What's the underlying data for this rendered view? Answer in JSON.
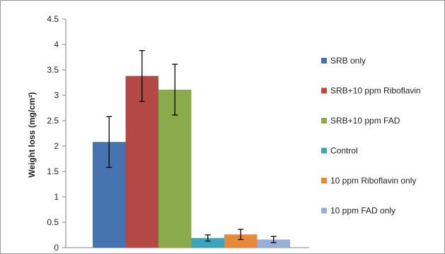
{
  "chart_data": {
    "type": "bar",
    "title": "",
    "xlabel": "",
    "ylabel": "Weight loss (mg/cm²)",
    "ylim": [
      0,
      4.5
    ],
    "yticks": [
      "0",
      "0.5",
      "1",
      "1.5",
      "2",
      "2.5",
      "3",
      "3.5",
      "4",
      "4.5"
    ],
    "ytick_values": [
      0,
      0.5,
      1,
      1.5,
      2,
      2.5,
      3,
      3.5,
      4,
      4.5
    ],
    "grid": false,
    "legend_position": "right",
    "series": [
      {
        "name": "SRB only",
        "value": 2.08,
        "error": 0.5,
        "color": "#4672b0"
      },
      {
        "name": "SRB+10 ppm Riboflavin",
        "value": 3.38,
        "error": 0.5,
        "color": "#b34845"
      },
      {
        "name": "SRB+10 ppm FAD",
        "value": 3.11,
        "error": 0.5,
        "color": "#8aaa4c"
      },
      {
        "name": "Control",
        "value": 0.19,
        "error": 0.06,
        "color": "#3fa4bb"
      },
      {
        "name": "10 ppm Riboflavin only",
        "value": 0.26,
        "error": 0.1,
        "color": "#e8883a"
      },
      {
        "name": "10 ppm FAD only",
        "value": 0.16,
        "error": 0.06,
        "color": "#98aed8"
      }
    ]
  }
}
